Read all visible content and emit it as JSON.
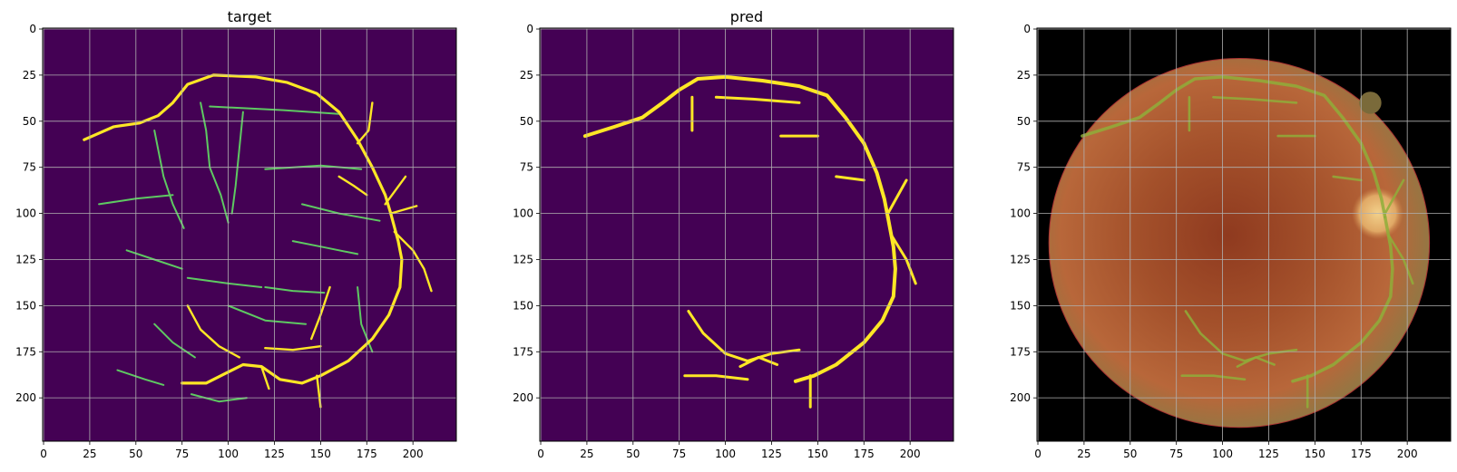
{
  "figure": {
    "panels": [
      {
        "title": "target"
      },
      {
        "title": "pred"
      },
      {
        "title": ""
      }
    ]
  },
  "colors": {
    "background": "#440154",
    "vessel_target": "#5ec962",
    "vessel_target_thick": "#fde725",
    "vessel_pred": "#fde725",
    "fundus_outer": "#000000",
    "fundus": "#b85f2f",
    "fundus_center": "#8f3a1f",
    "optic_disc": "#e7b46c",
    "overlay_vessel": "#8fae3a",
    "grid": "#b0b0b0"
  },
  "chart_data": [
    {
      "type": "heatmap",
      "title": "target",
      "image_size": [
        224,
        224
      ],
      "xticks": [
        0,
        25,
        50,
        75,
        100,
        125,
        150,
        175,
        200
      ],
      "yticks": [
        0,
        25,
        50,
        75,
        100,
        125,
        150,
        175,
        200
      ],
      "xlim": [
        -0.5,
        223.5
      ],
      "ylim": [
        223.5,
        -0.5
      ],
      "grid": true,
      "colormap": "viridis",
      "values_description": "binary vessel segmentation mask (target)"
    },
    {
      "type": "heatmap",
      "title": "pred",
      "image_size": [
        224,
        224
      ],
      "xticks": [
        0,
        25,
        50,
        75,
        100,
        125,
        150,
        175,
        200
      ],
      "yticks": [
        0,
        25,
        50,
        75,
        100,
        125,
        150,
        175,
        200
      ],
      "xlim": [
        -0.5,
        223.5
      ],
      "ylim": [
        223.5,
        -0.5
      ],
      "grid": true,
      "colormap": "viridis",
      "values_description": "binary vessel segmentation mask (prediction)"
    },
    {
      "type": "heatmap",
      "title": "",
      "image_size": [
        224,
        224
      ],
      "xticks": [
        0,
        25,
        50,
        75,
        100,
        125,
        150,
        175,
        200
      ],
      "yticks": [
        0,
        25,
        50,
        75,
        100,
        125,
        150,
        175,
        200
      ],
      "xlim": [
        -0.5,
        223.5
      ],
      "ylim": [
        223.5,
        -0.5
      ],
      "grid": true,
      "colormap": "rgb",
      "values_description": "retinal fundus photograph with predicted vessels overlaid"
    }
  ],
  "vessels": {
    "main": [
      [
        [
          22,
          60
        ],
        [
          38,
          53
        ],
        [
          52,
          51
        ],
        [
          62,
          47
        ],
        [
          70,
          40
        ],
        [
          78,
          30
        ],
        [
          92,
          25
        ],
        [
          115,
          26
        ],
        [
          132,
          29
        ],
        [
          148,
          35
        ],
        [
          160,
          45
        ],
        [
          170,
          60
        ],
        [
          178,
          75
        ],
        [
          185,
          90
        ],
        [
          188,
          100
        ]
      ],
      [
        [
          188,
          100
        ],
        [
          192,
          115
        ],
        [
          194,
          125
        ],
        [
          193,
          140
        ],
        [
          187,
          155
        ],
        [
          178,
          168
        ],
        [
          165,
          180
        ],
        [
          150,
          188
        ],
        [
          140,
          192
        ],
        [
          128,
          190
        ],
        [
          118,
          183
        ],
        [
          108,
          182
        ],
        [
          98,
          187
        ],
        [
          88,
          192
        ],
        [
          75,
          192
        ]
      ],
      [
        [
          190,
          110
        ],
        [
          200,
          120
        ],
        [
          206,
          130
        ],
        [
          210,
          142
        ]
      ],
      [
        [
          118,
          183
        ],
        [
          122,
          195
        ]
      ],
      [
        [
          148,
          188
        ],
        [
          150,
          205
        ]
      ],
      [
        [
          78,
          150
        ],
        [
          85,
          163
        ],
        [
          95,
          172
        ],
        [
          106,
          178
        ]
      ],
      [
        [
          120,
          173
        ],
        [
          135,
          174
        ],
        [
          150,
          172
        ]
      ],
      [
        [
          155,
          140
        ],
        [
          150,
          155
        ],
        [
          145,
          168
        ]
      ],
      [
        [
          160,
          80
        ],
        [
          168,
          85
        ],
        [
          175,
          90
        ]
      ],
      [
        [
          185,
          95
        ],
        [
          196,
          80
        ]
      ],
      [
        [
          188,
          100
        ],
        [
          202,
          96
        ]
      ],
      [
        [
          178,
          40
        ],
        [
          176,
          55
        ],
        [
          170,
          62
        ]
      ]
    ],
    "minor": [
      [
        [
          60,
          55
        ],
        [
          62,
          65
        ],
        [
          65,
          80
        ],
        [
          70,
          95
        ],
        [
          76,
          108
        ]
      ],
      [
        [
          85,
          40
        ],
        [
          88,
          55
        ],
        [
          90,
          75
        ],
        [
          96,
          90
        ],
        [
          100,
          105
        ]
      ],
      [
        [
          108,
          45
        ],
        [
          106,
          65
        ],
        [
          104,
          85
        ],
        [
          102,
          100
        ]
      ],
      [
        [
          90,
          42
        ],
        [
          130,
          44
        ],
        [
          160,
          46
        ]
      ],
      [
        [
          120,
          76
        ],
        [
          150,
          74
        ],
        [
          172,
          76
        ]
      ],
      [
        [
          30,
          95
        ],
        [
          50,
          92
        ],
        [
          70,
          90
        ]
      ],
      [
        [
          140,
          95
        ],
        [
          160,
          100
        ],
        [
          182,
          104
        ]
      ],
      [
        [
          120,
          140
        ],
        [
          135,
          142
        ],
        [
          152,
          143
        ]
      ],
      [
        [
          78,
          135
        ],
        [
          100,
          138
        ],
        [
          118,
          140
        ]
      ],
      [
        [
          135,
          115
        ],
        [
          150,
          118
        ],
        [
          170,
          122
        ]
      ],
      [
        [
          45,
          120
        ],
        [
          60,
          125
        ],
        [
          75,
          130
        ]
      ],
      [
        [
          100,
          150
        ],
        [
          120,
          158
        ],
        [
          142,
          160
        ]
      ],
      [
        [
          40,
          185
        ],
        [
          55,
          190
        ],
        [
          65,
          193
        ]
      ],
      [
        [
          80,
          198
        ],
        [
          95,
          202
        ],
        [
          110,
          200
        ]
      ],
      [
        [
          60,
          160
        ],
        [
          70,
          170
        ],
        [
          82,
          178
        ]
      ],
      [
        [
          170,
          140
        ],
        [
          172,
          160
        ],
        [
          178,
          175
        ]
      ]
    ],
    "pred_main": [
      [
        [
          24,
          58
        ],
        [
          40,
          53
        ],
        [
          55,
          48
        ],
        [
          66,
          40
        ],
        [
          75,
          33
        ],
        [
          85,
          27
        ],
        [
          100,
          26
        ],
        [
          120,
          28
        ],
        [
          140,
          31
        ],
        [
          155,
          36
        ],
        [
          165,
          48
        ],
        [
          175,
          62
        ],
        [
          182,
          78
        ],
        [
          186,
          92
        ],
        [
          188,
          102
        ]
      ],
      [
        [
          188,
          102
        ],
        [
          191,
          118
        ],
        [
          192,
          130
        ],
        [
          191,
          145
        ],
        [
          185,
          158
        ],
        [
          175,
          170
        ],
        [
          160,
          182
        ],
        [
          148,
          188
        ],
        [
          138,
          191
        ]
      ],
      [
        [
          190,
          112
        ],
        [
          198,
          125
        ],
        [
          203,
          138
        ]
      ],
      [
        [
          188,
          100
        ],
        [
          198,
          82
        ]
      ],
      [
        [
          80,
          153
        ],
        [
          88,
          165
        ],
        [
          100,
          176
        ],
        [
          112,
          180
        ],
        [
          125,
          176
        ],
        [
          140,
          174
        ]
      ],
      [
        [
          108,
          183
        ],
        [
          118,
          178
        ],
        [
          128,
          182
        ]
      ],
      [
        [
          78,
          188
        ],
        [
          95,
          188
        ],
        [
          112,
          190
        ]
      ],
      [
        [
          146,
          188
        ],
        [
          146,
          205
        ]
      ],
      [
        [
          160,
          80
        ],
        [
          175,
          82
        ]
      ],
      [
        [
          95,
          37
        ],
        [
          115,
          38
        ],
        [
          140,
          40
        ]
      ],
      [
        [
          130,
          58
        ],
        [
          150,
          58
        ]
      ],
      [
        [
          82,
          37
        ],
        [
          82,
          55
        ]
      ]
    ]
  }
}
